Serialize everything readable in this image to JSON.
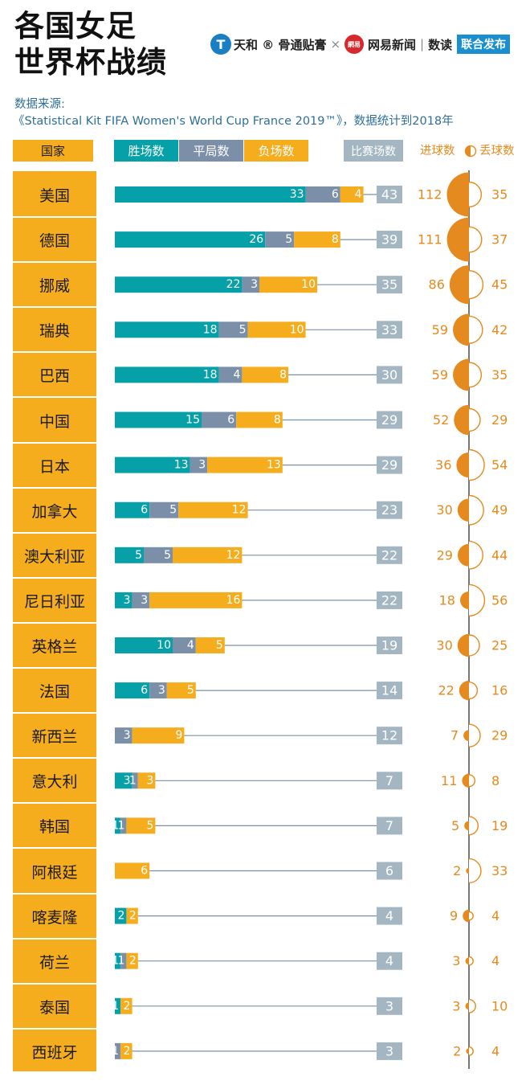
{
  "header": {
    "title_line1": "各国女足",
    "title_line2": "世界杯战绩",
    "brand1_logo": "T",
    "brand1_name": "天和 ® 骨通贴膏",
    "times": "×",
    "brand2_logo": "網易",
    "brand2_name": "网易新闻",
    "brand3_name": "数读",
    "brand_tag": "联合发布",
    "source_label": "数据来源:",
    "source_text": "《Statistical Kit FIFA Women's World Cup France 2019™》，数据统计到2018年"
  },
  "legend": {
    "country": "国家",
    "wins": "胜场数",
    "draws": "平局数",
    "losses": "负场数",
    "matches": "比赛场数",
    "goals_for": "进球数",
    "goals_against": "丢球数"
  },
  "colors": {
    "wins": "#06a0a8",
    "draws": "#7c8fa9",
    "losses": "#f5ad1e",
    "matches": "#a3b6c2",
    "goals": "#e58a1e",
    "country_bg": "#f5ad1e"
  },
  "chart_data": {
    "type": "bar",
    "categories": [
      "美国",
      "德国",
      "挪威",
      "瑞典",
      "巴西",
      "中国",
      "日本",
      "加拿大",
      "澳大利亚",
      "尼日利亚",
      "英格兰",
      "法国",
      "新西兰",
      "意大利",
      "韩国",
      "阿根廷",
      "喀麦隆",
      "荷兰",
      "泰国",
      "西班牙"
    ],
    "series": [
      {
        "name": "胜场数",
        "values": [
          33,
          26,
          22,
          18,
          18,
          15,
          13,
          6,
          5,
          3,
          10,
          6,
          0,
          3,
          1,
          0,
          2,
          1,
          1,
          0
        ]
      },
      {
        "name": "平局数",
        "values": [
          6,
          5,
          3,
          5,
          4,
          6,
          3,
          5,
          5,
          3,
          4,
          3,
          3,
          1,
          1,
          0,
          0,
          1,
          0,
          1
        ]
      },
      {
        "name": "负场数",
        "values": [
          4,
          8,
          10,
          10,
          8,
          8,
          13,
          12,
          12,
          16,
          5,
          5,
          9,
          3,
          5,
          6,
          2,
          2,
          2,
          2
        ]
      },
      {
        "name": "比赛场数",
        "values": [
          43,
          39,
          35,
          33,
          30,
          29,
          29,
          23,
          22,
          22,
          19,
          14,
          12,
          7,
          7,
          6,
          4,
          4,
          3,
          3
        ]
      },
      {
        "name": "进球数",
        "values": [
          112,
          111,
          86,
          59,
          59,
          52,
          36,
          30,
          29,
          18,
          30,
          22,
          7,
          11,
          5,
          2,
          9,
          3,
          3,
          2
        ]
      },
      {
        "name": "丢球数",
        "values": [
          35,
          37,
          45,
          42,
          35,
          29,
          54,
          49,
          44,
          56,
          25,
          16,
          29,
          8,
          19,
          33,
          4,
          4,
          10,
          4
        ]
      }
    ]
  }
}
